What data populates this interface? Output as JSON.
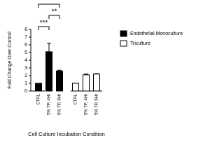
{
  "chart_data": {
    "type": "bar",
    "ylabel": "Fold Change Over Control",
    "xlabel": "Cell Culture  Incubation Condition",
    "categories": [
      "CTRL",
      "5% TP, 4Hr",
      "5% TP, 6Hr",
      "CTRL",
      "5% TP, 4Hr",
      "5% TP, 6Hr"
    ],
    "series": [
      {
        "name": "Endothelial Monoculture",
        "color": "#000000",
        "values": [
          1,
          5.1,
          2.6,
          null,
          null,
          null
        ],
        "errors": [
          0,
          1.1,
          0.1,
          null,
          null,
          null
        ]
      },
      {
        "name": "Triculture",
        "color": "#ffffff",
        "values": [
          null,
          null,
          null,
          1,
          2.1,
          2.2
        ],
        "errors": [
          null,
          null,
          null,
          0,
          0.1,
          0.05
        ]
      }
    ],
    "annotations": [
      "***",
      "**",
      "*"
    ],
    "ylim": [
      0,
      8
    ],
    "yticks": [
      0,
      1,
      2,
      3,
      4,
      5,
      6,
      7,
      8
    ],
    "legend": "right"
  }
}
